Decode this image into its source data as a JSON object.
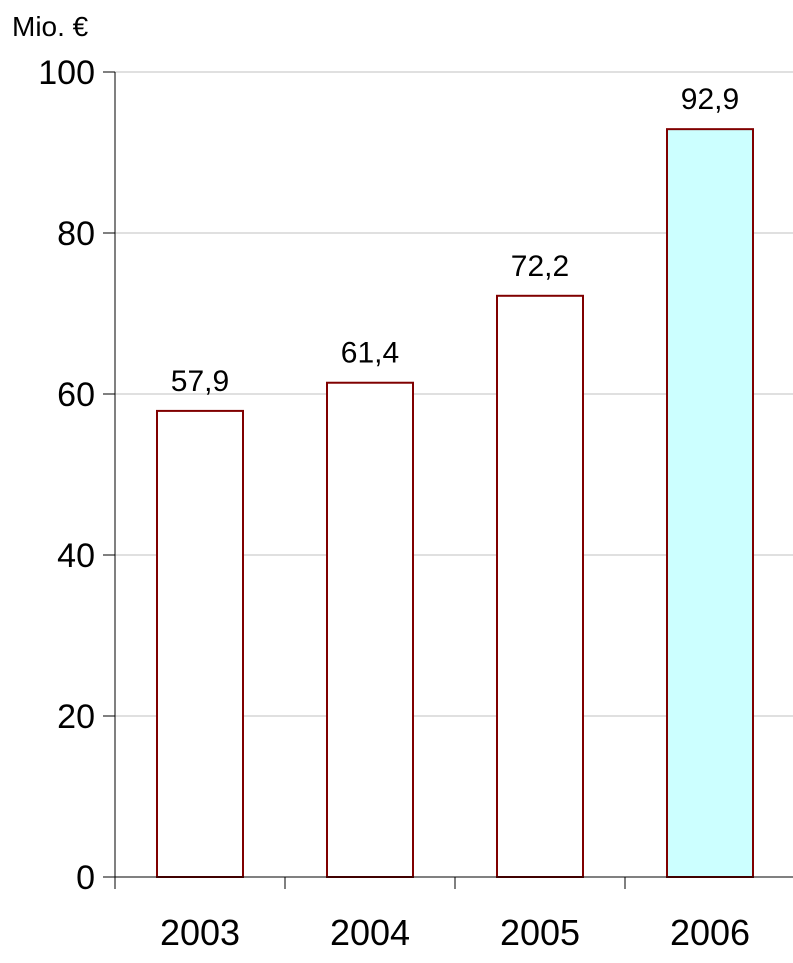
{
  "chart_data": {
    "type": "bar",
    "unit_label": "Mio. €",
    "categories": [
      "2003",
      "2004",
      "2005",
      "2006"
    ],
    "values": [
      57.9,
      61.4,
      72.2,
      92.9
    ],
    "value_labels": [
      "57,9",
      "61,4",
      "72,2",
      "92,9"
    ],
    "ylim": [
      0,
      100
    ],
    "yticks": [
      0,
      20,
      40,
      60,
      80,
      100
    ],
    "ytick_labels": [
      "0",
      "20",
      "40",
      "60",
      "80",
      "100"
    ],
    "grid": true,
    "bar_fills": [
      "#ffffff",
      "#ffffff",
      "#ffffff",
      "#ccffff"
    ],
    "bar_stroke": "#800000",
    "grid_color": "#c0c0c0",
    "axis_color": "#000000"
  }
}
